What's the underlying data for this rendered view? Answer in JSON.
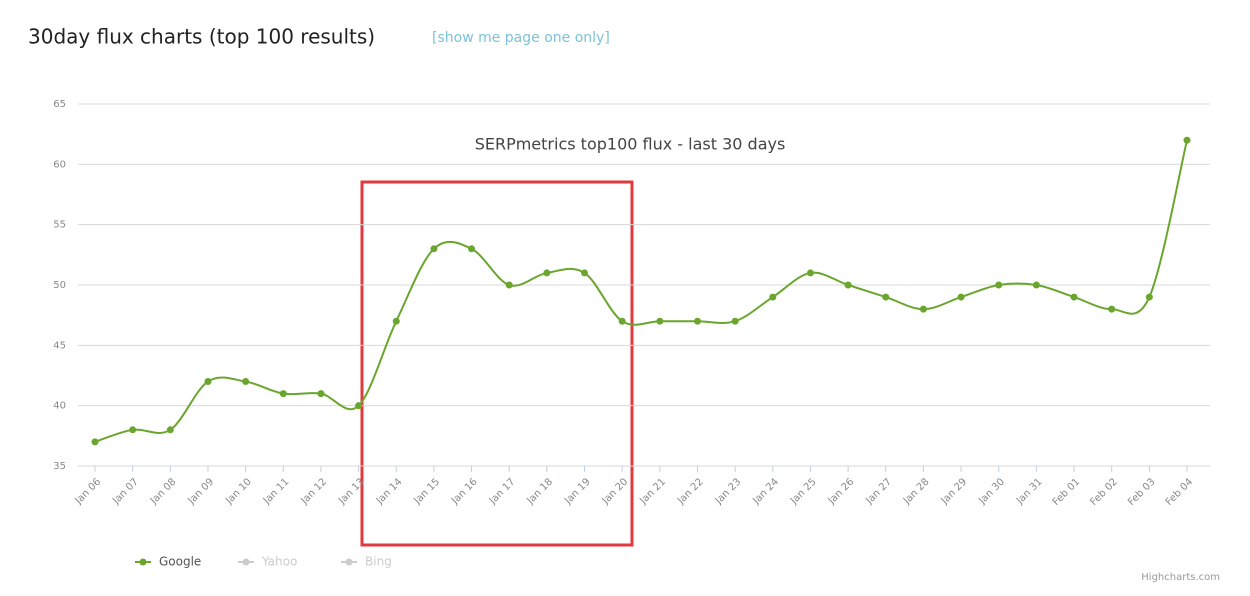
{
  "header": {
    "title": "30day flux charts (top 100 results)",
    "link": "[show me page one only]"
  },
  "chart_data": {
    "type": "line",
    "title": "SERPmetrics top100 flux - last 30 days",
    "categories": [
      "Jan 06",
      "Jan 07",
      "Jan 08",
      "Jan 09",
      "Jan 10",
      "Jan 11",
      "Jan 12",
      "Jan 13",
      "Jan 14",
      "Jan 15",
      "Jan 16",
      "Jan 17",
      "Jan 18",
      "Jan 19",
      "Jan 20",
      "Jan 21",
      "Jan 22",
      "Jan 23",
      "Jan 24",
      "Jan 25",
      "Jan 26",
      "Jan 27",
      "Jan 28",
      "Jan 29",
      "Jan 30",
      "Jan 31",
      "Feb 01",
      "Feb 02",
      "Feb 03",
      "Feb 04"
    ],
    "series": [
      {
        "name": "Google",
        "color": "#6aa62e",
        "values": [
          37,
          38,
          38,
          42,
          42,
          41,
          41,
          40,
          47,
          53,
          53,
          50,
          51,
          51,
          47,
          47,
          47,
          47,
          49,
          51,
          50,
          49,
          48,
          49,
          50,
          50,
          49,
          48,
          49,
          62
        ]
      }
    ],
    "hidden_series": [
      {
        "name": "Yahoo",
        "color": "#cccccc"
      },
      {
        "name": "Bing",
        "color": "#cccccc"
      }
    ],
    "ylim": [
      35,
      65
    ],
    "yticks": [
      35,
      40,
      45,
      50,
      55,
      60,
      65
    ],
    "grid": true,
    "smooth": true
  },
  "credits": "Highcharts.com"
}
